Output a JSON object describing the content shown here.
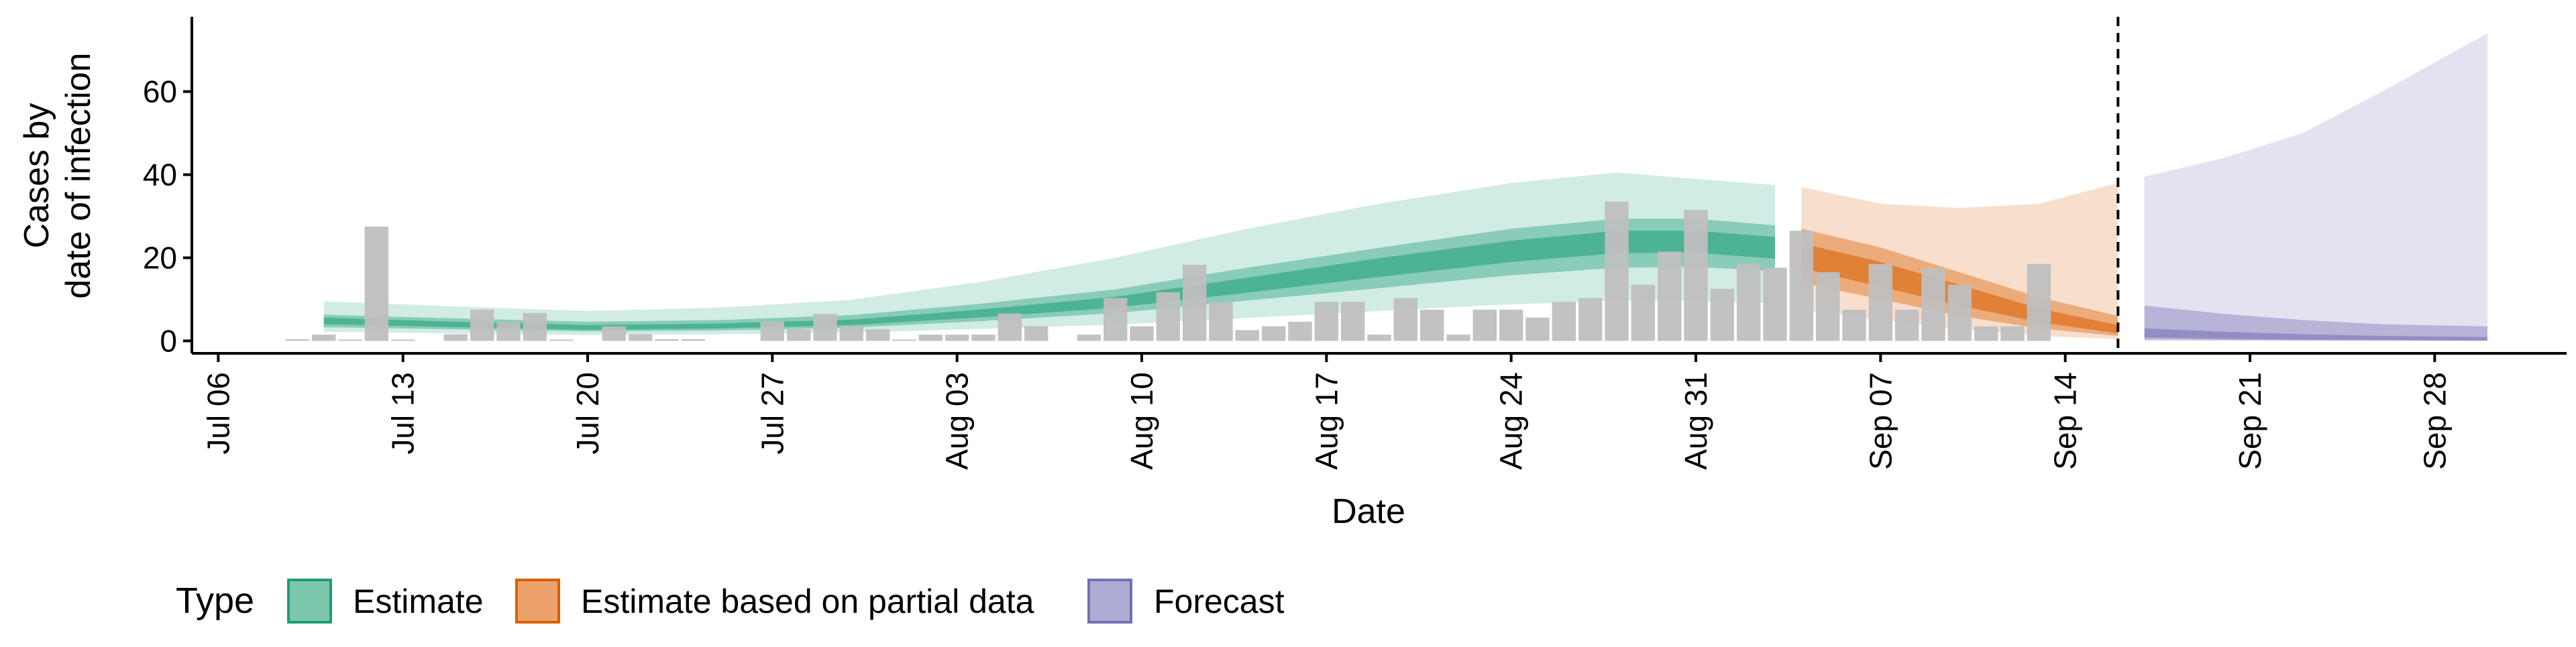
{
  "chart_data": {
    "type": "bar",
    "xlabel": "Date",
    "ylabel": [
      "Cases by",
      "date of infection"
    ],
    "ylim": [
      -3,
      78
    ],
    "xlim": [
      "2020-07-05",
      "2020-10-03"
    ],
    "y_ticks": [
      0,
      20,
      40,
      60
    ],
    "x_ticks": [
      {
        "date": "2020-07-06",
        "label": "Jul 06"
      },
      {
        "date": "2020-07-13",
        "label": "Jul 13"
      },
      {
        "date": "2020-07-20",
        "label": "Jul 20"
      },
      {
        "date": "2020-07-27",
        "label": "Jul 27"
      },
      {
        "date": "2020-08-03",
        "label": "Aug 03"
      },
      {
        "date": "2020-08-10",
        "label": "Aug 10"
      },
      {
        "date": "2020-08-17",
        "label": "Aug 17"
      },
      {
        "date": "2020-08-24",
        "label": "Aug 24"
      },
      {
        "date": "2020-08-31",
        "label": "Aug 31"
      },
      {
        "date": "2020-09-07",
        "label": "Sep 07"
      },
      {
        "date": "2020-09-14",
        "label": "Sep 14"
      },
      {
        "date": "2020-09-21",
        "label": "Sep 21"
      },
      {
        "date": "2020-09-28",
        "label": "Sep 28"
      }
    ],
    "grid": false,
    "legend_position": "bottom",
    "legend": {
      "title": "Type",
      "items": [
        {
          "label": "Estimate",
          "fill": "#7cc6ab",
          "stroke": "#1b9e77"
        },
        {
          "label": "Estimate based on partial data",
          "fill": "#eca16a",
          "stroke": "#d95f02"
        },
        {
          "label": "Forecast",
          "fill": "#aeabd4",
          "stroke": "#7570b3"
        }
      ]
    },
    "bars": {
      "color": "#bfbfbf",
      "start": "2020-07-09",
      "values": [
        0.4,
        1.5,
        0.3,
        27.5,
        0.3,
        0,
        1.6,
        7.5,
        4.5,
        6.7,
        0.3,
        0,
        3.5,
        1.6,
        0.4,
        0.4,
        0,
        0,
        4.6,
        2.8,
        6.5,
        3.5,
        2.8,
        0.3,
        1.5,
        1.5,
        1.5,
        6.6,
        3.5,
        0,
        1.5,
        10.3,
        3.5,
        11.7,
        18.3,
        9.3,
        2.6,
        3.5,
        4.6,
        9.4,
        9.4,
        1.5,
        10.3,
        7.5,
        1.5,
        7.5,
        7.5,
        5.6,
        9.4,
        10.3,
        33.5,
        13.5,
        21.5,
        31.5,
        12.5,
        18.6,
        17.6,
        26.5,
        16.5,
        7.5,
        18.5,
        7.5,
        17.5,
        13.5,
        3.5,
        3.5,
        18.5
      ]
    },
    "ribbon_order": [
      "Estimate",
      "Estimate based on partial data",
      "Forecast"
    ],
    "series": [
      {
        "name": "Estimate",
        "color": "#1b9e77",
        "dates": [
          "2020-07-10",
          "2020-07-15",
          "2020-07-20",
          "2020-07-25",
          "2020-07-30",
          "2020-08-04",
          "2020-08-09",
          "2020-08-14",
          "2020-08-19",
          "2020-08-24",
          "2020-08-28",
          "2020-08-31",
          "2020-09-03"
        ],
        "median": [
          4.8,
          3.9,
          3.2,
          3.5,
          4.4,
          6.6,
          9.3,
          13.5,
          17.8,
          21.8,
          24.0,
          24.0,
          22.5
        ],
        "lower_90": [
          2.2,
          1.8,
          1.4,
          1.6,
          2.0,
          2.9,
          3.9,
          5.5,
          7.2,
          8.8,
          9.6,
          9.6,
          9.0
        ],
        "upper_90": [
          9.5,
          8.3,
          7.2,
          8.0,
          9.9,
          14.3,
          20.0,
          27.0,
          33.0,
          38.0,
          40.5,
          39.0,
          37.5
        ],
        "lower_50": [
          3.3,
          2.8,
          2.3,
          2.5,
          3.2,
          4.8,
          6.7,
          9.7,
          12.7,
          15.8,
          17.6,
          17.8,
          16.8
        ],
        "upper_50": [
          6.3,
          5.4,
          4.6,
          5.0,
          6.2,
          9.0,
          12.4,
          17.6,
          22.4,
          27.0,
          29.4,
          29.4,
          27.8
        ],
        "lower_20": [
          4.0,
          3.3,
          2.7,
          3.0,
          3.8,
          5.7,
          8.0,
          11.6,
          15.4,
          19.0,
          21.1,
          21.2,
          19.8
        ],
        "upper_20": [
          5.6,
          4.6,
          3.8,
          4.2,
          5.1,
          7.6,
          10.6,
          15.2,
          19.9,
          24.1,
          26.5,
          26.5,
          25.0
        ]
      },
      {
        "name": "Estimate based on partial data",
        "color": "#d95f02",
        "dates": [
          "2020-09-04",
          "2020-09-07",
          "2020-09-10",
          "2020-09-13",
          "2020-09-16"
        ],
        "median": [
          20.5,
          16.0,
          11.0,
          6.0,
          2.5
        ],
        "lower_90": [
          7.5,
          5.0,
          2.8,
          1.2,
          0.4
        ],
        "upper_90": [
          37.0,
          33.0,
          32.0,
          33.0,
          38.0
        ],
        "lower_50": [
          14.0,
          10.0,
          6.0,
          3.0,
          1.2
        ],
        "upper_50": [
          27.0,
          22.5,
          16.5,
          10.5,
          6.0
        ],
        "lower_20": [
          17.5,
          13.0,
          8.5,
          4.5,
          1.8
        ],
        "upper_20": [
          23.5,
          19.0,
          13.5,
          7.8,
          3.8
        ]
      },
      {
        "name": "Forecast",
        "color": "#7570b3",
        "dates": [
          "2020-09-17",
          "2020-09-20",
          "2020-09-23",
          "2020-09-26",
          "2020-09-30"
        ],
        "median": [
          2.0,
          1.3,
          0.8,
          0.5,
          0.3
        ],
        "lower_90": [
          0.0,
          0.0,
          0.0,
          0.0,
          0.0
        ],
        "upper_90": [
          39.5,
          44.0,
          50.0,
          60.0,
          74.0
        ],
        "lower_50": [
          0.3,
          0.2,
          0.1,
          0.1,
          0.0
        ],
        "upper_50": [
          8.5,
          6.5,
          5.0,
          4.0,
          3.5
        ],
        "lower_20": [
          0.8,
          0.5,
          0.3,
          0.2,
          0.1
        ],
        "upper_20": [
          3.0,
          2.2,
          1.6,
          1.2,
          0.9
        ]
      }
    ],
    "vline": {
      "date": "2020-09-16",
      "style": "dashed"
    }
  }
}
